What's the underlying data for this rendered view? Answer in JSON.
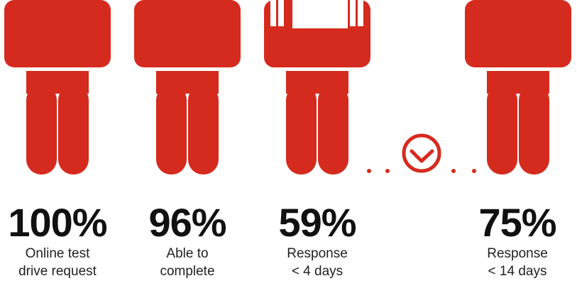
{
  "colors": {
    "accent": "#d52b1e",
    "text": "#111111"
  },
  "figures": [
    {
      "icon": "person-icon",
      "percent": "100%",
      "label_line1": "Online test",
      "label_line2": "drive request"
    },
    {
      "icon": "person-icon",
      "percent": "96%",
      "label_line1": "Able to",
      "label_line2": "complete"
    },
    {
      "icon": "person-icon",
      "percent": "59%",
      "label_line1": "Response",
      "label_line2": "< 4 days"
    },
    {
      "icon": "person-icon",
      "percent": "75%",
      "label_line1": "Response",
      "label_line2": "< 14 days"
    }
  ],
  "connector": {
    "icon": "clock-icon"
  }
}
